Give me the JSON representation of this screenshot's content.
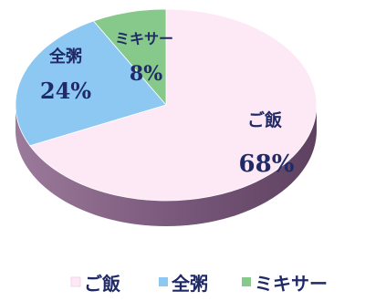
{
  "chart_data": {
    "type": "pie",
    "title": "",
    "slices": [
      {
        "label": "ご飯",
        "value": 68,
        "value_label": "68%",
        "color": "#fde9f6"
      },
      {
        "label": "全粥",
        "value": 24,
        "value_label": "24%",
        "color": "#8cc8f2"
      },
      {
        "label": "ミキサー",
        "value": 8,
        "value_label": "8%",
        "color": "#86c98a"
      }
    ],
    "legend": {
      "position": "bottom",
      "entries": [
        "ご飯",
        "全粥",
        "ミキサー"
      ]
    },
    "side_color": "#7b5a7d",
    "text_color": "#1f2a66"
  }
}
